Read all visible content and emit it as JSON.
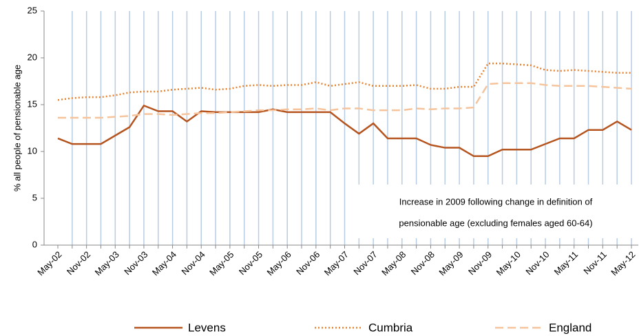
{
  "chart_data": {
    "type": "line",
    "y_label": "% all people of pensionable  age",
    "annotation": [
      "Increase in 2009 following change in definition of",
      "pensionable age (excluding females aged 60-64)"
    ],
    "categories": [
      "May-02",
      null,
      "Nov-02",
      null,
      "May-03",
      null,
      "Nov-03",
      null,
      "May-04",
      null,
      "Nov-04",
      null,
      "May-05",
      null,
      "Nov-05",
      null,
      "May-06",
      null,
      "Nov-06",
      null,
      "May-07",
      null,
      "Nov-07",
      null,
      "May-08",
      null,
      "Nov-08",
      null,
      "May-09",
      null,
      "Nov-09",
      null,
      "May-10",
      null,
      "Nov-10",
      null,
      "May-11",
      null,
      "Nov-11",
      null,
      "May-12"
    ],
    "series": [
      {
        "name": "Levens",
        "color": "#b5541f",
        "dash": "solid",
        "values": [
          11.4,
          10.8,
          10.8,
          10.8,
          11.7,
          12.6,
          14.9,
          14.3,
          14.3,
          13.2,
          14.3,
          14.2,
          14.2,
          14.2,
          14.2,
          14.5,
          14.2,
          14.2,
          14.2,
          14.2,
          13,
          11.9,
          13,
          11.4,
          11.4,
          11.4,
          10.7,
          10.4,
          10.4,
          9.5,
          9.5,
          10.2,
          10.2,
          10.2,
          10.8,
          11.4,
          11.4,
          12.3,
          12.3,
          13.2,
          12.3
        ]
      },
      {
        "name": "Cumbria",
        "color": "#e8822e",
        "dash": "dotted",
        "values": [
          15.5,
          15.7,
          15.8,
          15.8,
          16,
          16.3,
          16.4,
          16.4,
          16.6,
          16.7,
          16.8,
          16.6,
          16.7,
          17,
          17.1,
          17,
          17.1,
          17.1,
          17.4,
          17,
          17.2,
          17.4,
          17,
          17,
          17,
          17.1,
          16.7,
          16.7,
          16.9,
          16.9,
          19.4,
          19.4,
          19.3,
          19.2,
          18.7,
          18.6,
          18.7,
          18.6,
          18.5,
          18.4,
          18.4
        ]
      },
      {
        "name": "England",
        "color": "#f5c49c",
        "dash": "dashed",
        "values": [
          13.6,
          13.6,
          13.6,
          13.6,
          13.7,
          13.8,
          14,
          14,
          13.9,
          14,
          14.1,
          14.1,
          14.2,
          14.3,
          14.4,
          14.4,
          14.5,
          14.5,
          14.6,
          14.4,
          14.6,
          14.6,
          14.4,
          14.4,
          14.4,
          14.6,
          14.5,
          14.6,
          14.6,
          14.7,
          17.2,
          17.3,
          17.3,
          17.3,
          17.1,
          17,
          17,
          17,
          16.9,
          16.8,
          16.7
        ]
      }
    ],
    "ylim": [
      0,
      25
    ],
    "yticks": [
      0,
      5,
      10,
      15,
      20,
      25
    ],
    "vertical_grid": true,
    "legend": "bottom"
  }
}
